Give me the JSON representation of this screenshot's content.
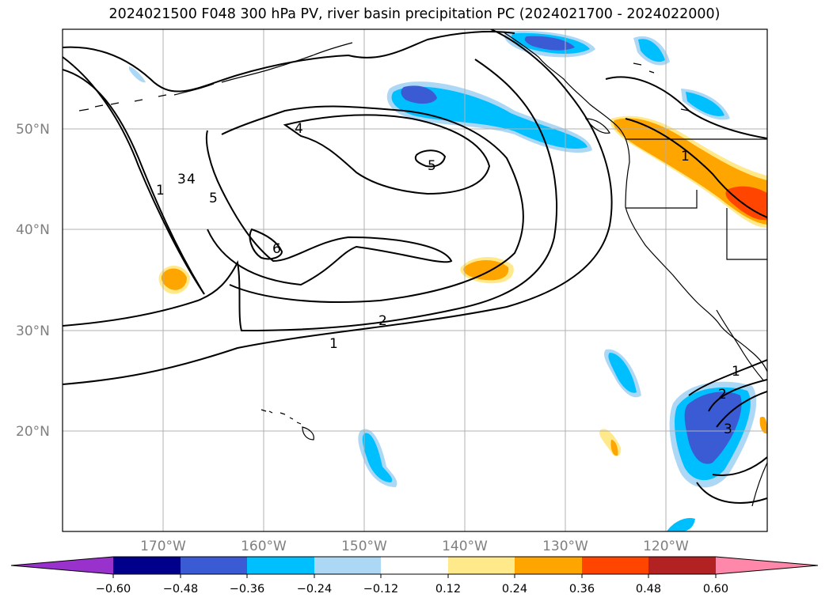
{
  "title": "2024021500 F048 300 hPa PV, river basin precipitation PC (2024021700 - 2024022000)",
  "map": {
    "lon_range": [
      -180,
      -110
    ],
    "lat_range": [
      10,
      60
    ],
    "lat_labels": [
      "20°N",
      "30°N",
      "40°N",
      "50°N"
    ],
    "lon_labels": [
      "170°W",
      "160°W",
      "150°W",
      "140°W",
      "130°W",
      "120°W"
    ],
    "gridline_color": "#b0b0b0",
    "coastline_color": "#000000",
    "contour_color": "#000000",
    "contour_labels": [
      "1",
      "2",
      "3",
      "4",
      "5",
      "6"
    ]
  },
  "colorbar": {
    "ticks": [
      "−0.60",
      "−0.48",
      "−0.36",
      "−0.24",
      "−0.12",
      "0.12",
      "0.24",
      "0.36",
      "0.48",
      "0.60"
    ],
    "colors": [
      "#9932cc",
      "#00008b",
      "#3b5bd5",
      "#00bfff",
      "#add8f5",
      "#ffffff",
      "#ffe98a",
      "#ffa500",
      "#ff4500",
      "#b22222",
      "#ff88aa"
    ],
    "extend": "both"
  }
}
